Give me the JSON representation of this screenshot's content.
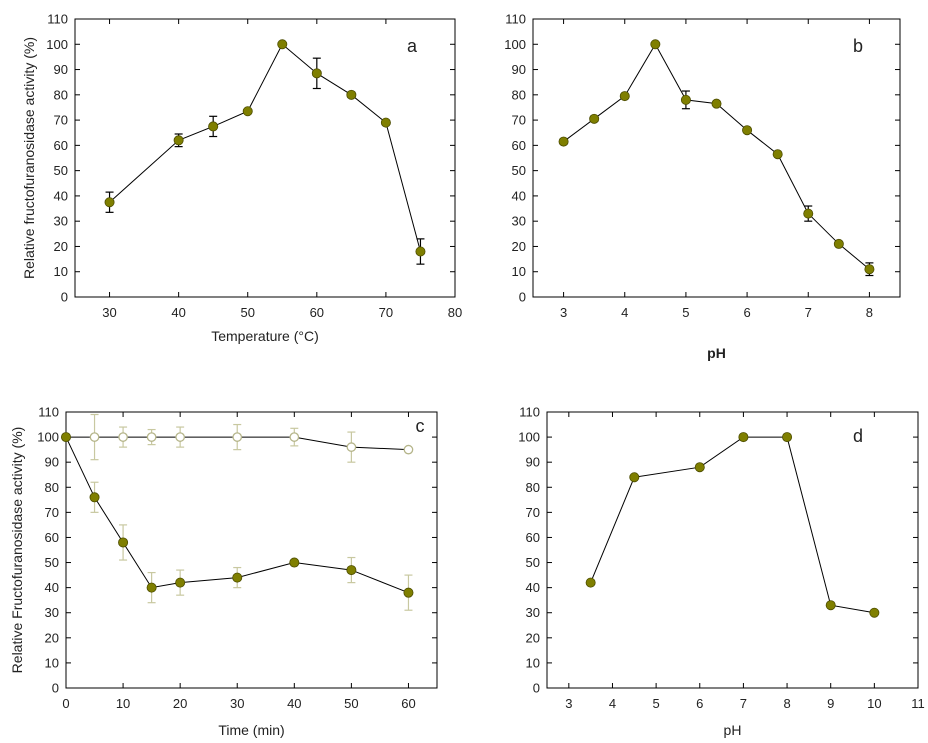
{
  "colors": {
    "marker_fill": "#7f7f00",
    "marker_edge": "#4d4d00",
    "line": "#000000",
    "axis": "#000000",
    "open_marker_edge": "#b5b58a",
    "errorbar": "#000000",
    "errorbar_light": "#c8c8a0"
  },
  "chart_data": [
    {
      "id": "a",
      "type": "line",
      "panel_label": "a",
      "title": "",
      "xlabel": "Temperature (°C)",
      "ylabel": "Relative fructofuranosidase activity (%)",
      "xlim": [
        25,
        80
      ],
      "ylim": [
        0,
        110
      ],
      "xticks": [
        30,
        40,
        50,
        60,
        70,
        80
      ],
      "yticks": [
        0,
        10,
        20,
        30,
        40,
        50,
        60,
        70,
        80,
        90,
        100,
        110
      ],
      "grid": false,
      "legend": "none",
      "series": [
        {
          "marker": "filled-circle",
          "x": [
            30,
            40,
            45,
            50,
            55,
            60,
            65,
            70,
            75
          ],
          "y": [
            37.5,
            62,
            67.5,
            73.5,
            100,
            88.5,
            80,
            69,
            18
          ],
          "err": [
            4,
            2.5,
            4,
            0.8,
            0,
            6,
            1,
            0.8,
            5
          ]
        }
      ]
    },
    {
      "id": "b",
      "type": "line",
      "panel_label": "b",
      "title": "",
      "xlabel": "pH",
      "ylabel": "",
      "xlim": [
        2.5,
        8.5
      ],
      "ylim": [
        0,
        110
      ],
      "xticks": [
        3,
        4,
        5,
        6,
        7,
        8
      ],
      "yticks": [
        0,
        10,
        20,
        30,
        40,
        50,
        60,
        70,
        80,
        90,
        100,
        110
      ],
      "grid": false,
      "legend": "none",
      "series": [
        {
          "marker": "filled-circle",
          "x": [
            3,
            3.5,
            4,
            4.5,
            5,
            5.5,
            6,
            6.5,
            7,
            7.5,
            8
          ],
          "y": [
            61.5,
            70.5,
            79.5,
            100,
            78,
            76.5,
            66,
            56.5,
            33,
            21,
            11
          ],
          "err": [
            1,
            1,
            0.5,
            0,
            3.5,
            0.5,
            0.8,
            0.5,
            3,
            0.5,
            2.5
          ]
        }
      ]
    },
    {
      "id": "c",
      "type": "line",
      "panel_label": "c",
      "title": "",
      "xlabel": "Time (min)",
      "ylabel": "Relative Fructofuranosidase activity (%)",
      "xlim": [
        0,
        65
      ],
      "ylim": [
        0,
        110
      ],
      "xticks": [
        0,
        10,
        20,
        30,
        40,
        50,
        60
      ],
      "yticks": [
        0,
        10,
        20,
        30,
        40,
        50,
        60,
        70,
        80,
        90,
        100,
        110
      ],
      "grid": false,
      "legend": "none",
      "series": [
        {
          "marker": "open-circle",
          "x": [
            0,
            5,
            10,
            15,
            20,
            30,
            40,
            50,
            60
          ],
          "y": [
            100,
            100,
            100,
            100,
            100,
            100,
            100,
            96,
            95
          ],
          "err": [
            0,
            9,
            4,
            3,
            4,
            5,
            3.5,
            6,
            0
          ]
        },
        {
          "marker": "filled-circle",
          "x": [
            0,
            5,
            10,
            15,
            20,
            30,
            40,
            50,
            60
          ],
          "y": [
            100,
            76,
            58,
            40,
            42,
            44,
            50,
            47,
            38
          ],
          "err": [
            0,
            6,
            7,
            6,
            5,
            4,
            0,
            5,
            7
          ]
        }
      ]
    },
    {
      "id": "d",
      "type": "line",
      "panel_label": "d",
      "title": "",
      "xlabel": "pH",
      "ylabel": "",
      "xlim": [
        2.5,
        11
      ],
      "ylim": [
        0,
        110
      ],
      "xticks": [
        3,
        4,
        5,
        6,
        7,
        8,
        9,
        10,
        11
      ],
      "yticks": [
        0,
        10,
        20,
        30,
        40,
        50,
        60,
        70,
        80,
        90,
        100,
        110
      ],
      "grid": false,
      "legend": "none",
      "series": [
        {
          "marker": "filled-circle",
          "x": [
            3.5,
            4.5,
            6,
            7,
            8,
            9,
            10
          ],
          "y": [
            42,
            84,
            88,
            100,
            100,
            33,
            30
          ],
          "err": [
            0,
            0,
            0,
            0,
            0,
            0,
            0
          ]
        }
      ]
    }
  ]
}
